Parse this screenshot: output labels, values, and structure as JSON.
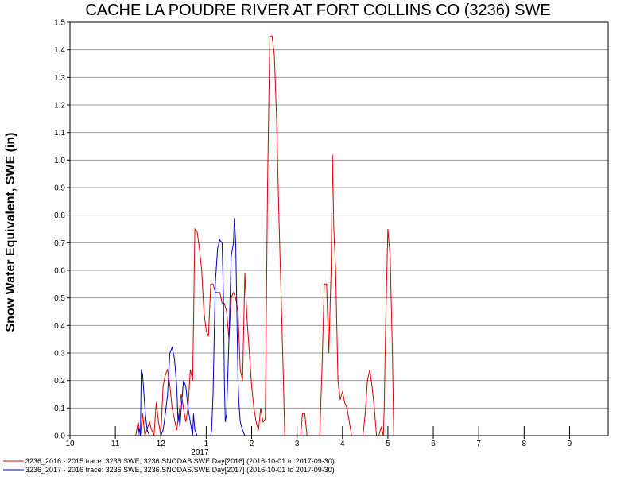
{
  "chart_data": {
    "type": "line",
    "title": "CACHE LA POUDRE RIVER AT FORT COLLINS CO (3236) SWE",
    "ylabel": "Snow Water Equivalent, SWE (in)",
    "xlabel": "",
    "ylim": [
      0,
      1.5
    ],
    "y_ticks": [
      "0.0",
      "0.1",
      "0.2",
      "0.3",
      "0.4",
      "0.5",
      "0.6",
      "0.7",
      "0.8",
      "0.9",
      "1.0",
      "1.1",
      "1.2",
      "1.3",
      "1.4",
      "1.5"
    ],
    "x_ticks": [
      "10",
      "11",
      "12",
      "1",
      "2",
      "3",
      "4",
      "5",
      "6",
      "7",
      "8",
      "9"
    ],
    "x_year_label": "2017",
    "grid": true,
    "legend_position": "bottom",
    "series": [
      {
        "name": "3236_2016 - 2015 trace: 3236 SWE, 3236.SNODAS.SWE.Day[2016] (2016-10-01 to 2017-09-30)",
        "color": "#e00000",
        "points": [
          [
            11.45,
            0
          ],
          [
            11.5,
            0.05
          ],
          [
            11.55,
            0
          ],
          [
            11.6,
            0.08
          ],
          [
            11.65,
            0
          ],
          [
            11.75,
            0.05
          ],
          [
            11.8,
            0.02
          ],
          [
            11.85,
            0
          ],
          [
            11.9,
            0.12
          ],
          [
            11.95,
            0.05
          ],
          [
            12.0,
            0
          ],
          [
            12.05,
            0.18
          ],
          [
            12.1,
            0.22
          ],
          [
            12.15,
            0.24
          ],
          [
            12.2,
            0.18
          ],
          [
            12.25,
            0.1
          ],
          [
            12.3,
            0.06
          ],
          [
            12.35,
            0.02
          ],
          [
            12.4,
            0.08
          ],
          [
            12.45,
            0.15
          ],
          [
            12.5,
            0.1
          ],
          [
            12.55,
            0.05
          ],
          [
            12.6,
            0.1
          ],
          [
            12.65,
            0.24
          ],
          [
            12.7,
            0.2
          ],
          [
            12.72,
            0.4
          ],
          [
            12.75,
            0.75
          ],
          [
            12.8,
            0.74
          ],
          [
            12.85,
            0.68
          ],
          [
            12.9,
            0.6
          ],
          [
            12.95,
            0.45
          ],
          [
            13.0,
            0.38
          ],
          [
            13.05,
            0.36
          ],
          [
            13.1,
            0.55
          ],
          [
            13.15,
            0.55
          ],
          [
            13.2,
            0.52
          ],
          [
            13.3,
            0.52
          ],
          [
            13.35,
            0.48
          ],
          [
            13.4,
            0.48
          ],
          [
            13.45,
            0.45
          ],
          [
            13.5,
            0.35
          ],
          [
            13.55,
            0.5
          ],
          [
            13.6,
            0.52
          ],
          [
            13.65,
            0.5
          ],
          [
            13.7,
            0.45
          ],
          [
            13.75,
            0.24
          ],
          [
            13.8,
            0.2
          ],
          [
            13.85,
            0.59
          ],
          [
            13.9,
            0.42
          ],
          [
            13.95,
            0.3
          ],
          [
            14.0,
            0.18
          ],
          [
            14.05,
            0.1
          ],
          [
            14.1,
            0.05
          ],
          [
            14.15,
            0.02
          ],
          [
            14.2,
            0.1
          ],
          [
            14.25,
            0.05
          ],
          [
            14.3,
            0.06
          ],
          [
            14.35,
            0.9
          ],
          [
            14.4,
            1.45
          ],
          [
            14.45,
            1.45
          ],
          [
            14.5,
            1.38
          ],
          [
            14.55,
            1.15
          ],
          [
            14.6,
            0.8
          ],
          [
            14.65,
            0.5
          ],
          [
            14.7,
            0.2
          ],
          [
            14.73,
            0
          ],
          [
            15.0,
            0
          ],
          [
            15.08,
            0
          ],
          [
            15.12,
            0.08
          ],
          [
            15.17,
            0.08
          ],
          [
            15.22,
            0
          ],
          [
            15.5,
            0
          ],
          [
            15.55,
            0.25
          ],
          [
            15.6,
            0.55
          ],
          [
            15.65,
            0.55
          ],
          [
            15.7,
            0.3
          ],
          [
            15.75,
            0.6
          ],
          [
            15.78,
            1.02
          ],
          [
            15.81,
            0.75
          ],
          [
            15.85,
            0.6
          ],
          [
            15.9,
            0.2
          ],
          [
            15.95,
            0.13
          ],
          [
            16.0,
            0.16
          ],
          [
            16.05,
            0.12
          ],
          [
            16.1,
            0.1
          ],
          [
            16.15,
            0.05
          ],
          [
            16.2,
            0
          ],
          [
            16.45,
            0
          ],
          [
            16.5,
            0.08
          ],
          [
            16.55,
            0.2
          ],
          [
            16.6,
            0.24
          ],
          [
            16.65,
            0.18
          ],
          [
            16.7,
            0.1
          ],
          [
            16.75,
            0
          ],
          [
            16.8,
            0
          ],
          [
            16.85,
            0.03
          ],
          [
            16.9,
            0
          ],
          [
            16.92,
            0.1
          ],
          [
            16.95,
            0.4
          ],
          [
            17.0,
            0.75
          ],
          [
            17.05,
            0.65
          ],
          [
            17.1,
            0.3
          ],
          [
            17.13,
            0
          ],
          [
            17.2,
            0
          ]
        ]
      },
      {
        "name": "3236_2017 - 2016 trace: 3236 SWE, 3236.SNODAS.SWE.Day[2017] (2016-10-01 to 2017-09-30)",
        "color": "#0000cc",
        "points": [
          [
            11.5,
            0
          ],
          [
            11.52,
            0.03
          ],
          [
            11.55,
            0
          ],
          [
            11.57,
            0.24
          ],
          [
            11.6,
            0.22
          ],
          [
            11.63,
            0.15
          ],
          [
            11.66,
            0.08
          ],
          [
            11.7,
            0.02
          ],
          [
            11.75,
            0
          ],
          [
            12.0,
            0
          ],
          [
            12.05,
            0.02
          ],
          [
            12.1,
            0.08
          ],
          [
            12.15,
            0.15
          ],
          [
            12.2,
            0.3
          ],
          [
            12.25,
            0.32
          ],
          [
            12.3,
            0.28
          ],
          [
            12.35,
            0.18
          ],
          [
            12.38,
            0.05
          ],
          [
            12.4,
            0.08
          ],
          [
            12.42,
            0.03
          ],
          [
            12.45,
            0.1
          ],
          [
            12.5,
            0.2
          ],
          [
            12.55,
            0.18
          ],
          [
            12.6,
            0.1
          ],
          [
            12.65,
            0.05
          ],
          [
            12.7,
            0
          ],
          [
            12.72,
            0.08
          ],
          [
            12.75,
            0.02
          ],
          [
            12.8,
            0
          ],
          [
            13.0,
            0
          ],
          [
            13.1,
            0
          ],
          [
            13.12,
            0.02
          ],
          [
            13.15,
            0.15
          ],
          [
            13.2,
            0.55
          ],
          [
            13.25,
            0.68
          ],
          [
            13.3,
            0.71
          ],
          [
            13.35,
            0.7
          ],
          [
            13.38,
            0.5
          ],
          [
            13.4,
            0.2
          ],
          [
            13.42,
            0.05
          ],
          [
            13.45,
            0.08
          ],
          [
            13.5,
            0.35
          ],
          [
            13.55,
            0.65
          ],
          [
            13.6,
            0.7
          ],
          [
            13.62,
            0.79
          ],
          [
            13.65,
            0.7
          ],
          [
            13.7,
            0.2
          ],
          [
            13.72,
            0.12
          ],
          [
            13.75,
            0.05
          ],
          [
            13.8,
            0.02
          ],
          [
            13.85,
            0
          ],
          [
            14.0,
            0
          ]
        ]
      }
    ]
  }
}
